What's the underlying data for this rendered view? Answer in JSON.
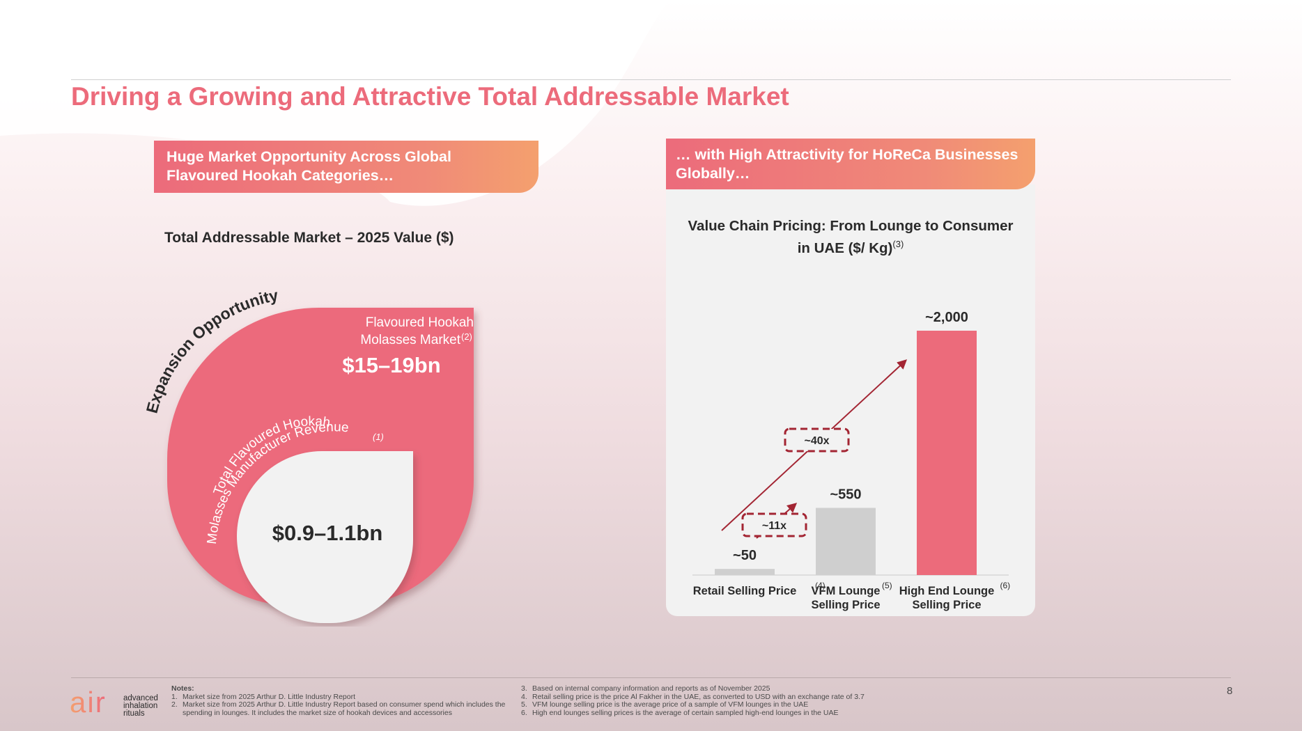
{
  "title": "Driving a Growing and Attractive Total Addressable Market",
  "left_banner": {
    "line1": "Huge Market Opportunity Across Global",
    "line2": "Flavoured Hookah Categories…"
  },
  "right_banner": {
    "line1": "… with High Attractivity for HoReCa Businesses",
    "line2": "Globally…"
  },
  "left_subtitle": "Total Addressable Market – 2025 Value ($)",
  "tam": {
    "arc_label": "Expansion Opportunity",
    "outer_label_line1": "Flavoured Hookah",
    "outer_label_line2": "Molasses Market",
    "outer_note": "(2)",
    "outer_value": "$15–19bn",
    "inner_label_line1": "Total Flavoured Hookah",
    "inner_label_line2": "Molasses Manufacturer Revenue",
    "inner_note": "(1)",
    "inner_value": "$0.9–1.1bn"
  },
  "chart_data": {
    "type": "bar",
    "title_line1": "Value Chain Pricing: From Lounge to Consumer",
    "title_line2": "in UAE ($/ Kg)",
    "title_note": "(3)",
    "categories": [
      "Retail Selling Price",
      "VFM Lounge Selling Price",
      "High End Lounge Selling Price"
    ],
    "category_lines": [
      [
        "Retail Selling Price"
      ],
      [
        "VFM Lounge",
        "Selling Price"
      ],
      [
        "High End Lounge",
        "Selling Price"
      ]
    ],
    "category_notes": [
      "(4)",
      "(5)",
      "(6)"
    ],
    "values": [
      50,
      550,
      2000
    ],
    "value_labels": [
      "~50",
      "~550",
      "~2,000"
    ],
    "colors": [
      "#cfcfcf",
      "#cfcfcf",
      "#ec6b7b"
    ],
    "ylim": [
      0,
      2000
    ],
    "multipliers": [
      "~11x",
      "~40x"
    ]
  },
  "notes": {
    "heading": "Notes:",
    "left": [
      {
        "num": "1.",
        "text": "Market size from 2025 Arthur D. Little Industry Report"
      },
      {
        "num": "2.",
        "text": "Market size from 2025 Arthur D. Little Industry Report based on consumer spend which includes the spending in lounges. It includes the market size of hookah devices and accessories"
      }
    ],
    "right": [
      {
        "num": "3.",
        "text": "Based on internal company information and reports as of November 2025"
      },
      {
        "num": "4.",
        "text": "Retail selling price is the price Al Fakher in the UAE, as converted to USD with an exchange rate of 3.7"
      },
      {
        "num": "5.",
        "text": "VFM lounge selling price is the average price of a sample of VFM lounges in the UAE"
      },
      {
        "num": "6.",
        "text": "High end lounges selling prices is the average of certain sampled high-end lounges in the UAE"
      }
    ]
  },
  "logo": {
    "mark": "air",
    "line1": "advanced",
    "line2": "inhalation",
    "line3": "rituals"
  },
  "page_number": "8",
  "colors": {
    "accent": "#ec6b7b",
    "orange": "#f4a06e",
    "dark_red": "#a32533",
    "bar_grey": "#cfcfcf"
  }
}
